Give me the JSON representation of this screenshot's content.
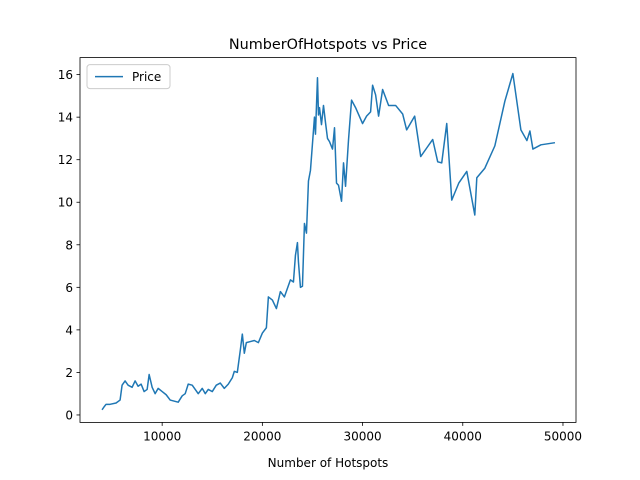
{
  "chart_data": {
    "type": "line",
    "title": "NumberOfHotspots vs Price",
    "x_label": "Number of Hotspots",
    "x": [
      4000,
      4200,
      4400,
      4800,
      5400,
      5800,
      6000,
      6300,
      6600,
      7000,
      7300,
      7600,
      7900,
      8200,
      8500,
      8700,
      9000,
      9300,
      9600,
      10000,
      10400,
      10800,
      11600,
      12000,
      12300,
      12600,
      13000,
      13300,
      13600,
      14000,
      14300,
      14600,
      15000,
      15400,
      15800,
      16200,
      16600,
      17000,
      17200,
      17500,
      17800,
      18000,
      18200,
      18400,
      18800,
      19200,
      19600,
      20000,
      20400,
      20600,
      21000,
      21400,
      21800,
      22200,
      22800,
      23100,
      23300,
      23500,
      23600,
      23800,
      24000,
      24200,
      24400,
      24600,
      24800,
      25200,
      25300,
      25500,
      25600,
      25700,
      25900,
      26100,
      26300,
      26500,
      26700,
      27000,
      27200,
      27400,
      27600,
      27900,
      28100,
      28300,
      28600,
      28900,
      29300,
      30000,
      30400,
      30800,
      31000,
      31300,
      31600,
      32000,
      32600,
      33300,
      34000,
      34400,
      35200,
      35800,
      36400,
      37000,
      37500,
      37900,
      38400,
      38900,
      39600,
      40400,
      41200,
      41400,
      42200,
      43200,
      44200,
      45000,
      45800,
      46400,
      46700,
      47000,
      47800,
      49200
    ],
    "series": [
      {
        "name": "Price",
        "color": "#1f77b4",
        "values": [
          0.24,
          0.38,
          0.5,
          0.5,
          0.56,
          0.7,
          1.4,
          1.6,
          1.4,
          1.3,
          1.6,
          1.35,
          1.45,
          1.1,
          1.2,
          1.9,
          1.3,
          1.0,
          1.25,
          1.1,
          0.95,
          0.7,
          0.6,
          0.9,
          1.0,
          1.45,
          1.4,
          1.2,
          1.0,
          1.25,
          1.0,
          1.2,
          1.1,
          1.4,
          1.5,
          1.25,
          1.45,
          1.75,
          2.05,
          2.0,
          3.05,
          3.8,
          2.9,
          3.4,
          3.45,
          3.5,
          3.4,
          3.85,
          4.1,
          5.55,
          5.4,
          5.0,
          5.8,
          5.55,
          6.35,
          6.25,
          7.5,
          8.1,
          7.2,
          6.0,
          6.05,
          9.0,
          8.55,
          11.0,
          11.5,
          14.0,
          13.2,
          15.85,
          14.1,
          14.45,
          13.65,
          14.55,
          13.75,
          13.0,
          12.85,
          12.5,
          13.5,
          10.9,
          10.8,
          10.05,
          11.85,
          10.75,
          12.95,
          14.8,
          14.45,
          13.7,
          14.05,
          14.25,
          15.5,
          15.05,
          14.05,
          15.3,
          14.55,
          14.55,
          14.15,
          13.4,
          14.05,
          12.15,
          12.55,
          12.95,
          11.9,
          11.85,
          13.7,
          10.1,
          10.9,
          11.45,
          9.4,
          11.15,
          11.6,
          12.65,
          14.75,
          16.05,
          13.4,
          12.9,
          13.35,
          12.5,
          12.7,
          12.8
        ]
      }
    ],
    "xlim": [
      1800,
      51300
    ],
    "ylim": [
      -0.35,
      16.8
    ],
    "xticks": [
      10000,
      20000,
      30000,
      40000,
      50000
    ],
    "yticks": [
      0,
      2,
      4,
      6,
      8,
      10,
      12,
      14,
      16
    ],
    "grid": false,
    "legend": "upper left"
  }
}
